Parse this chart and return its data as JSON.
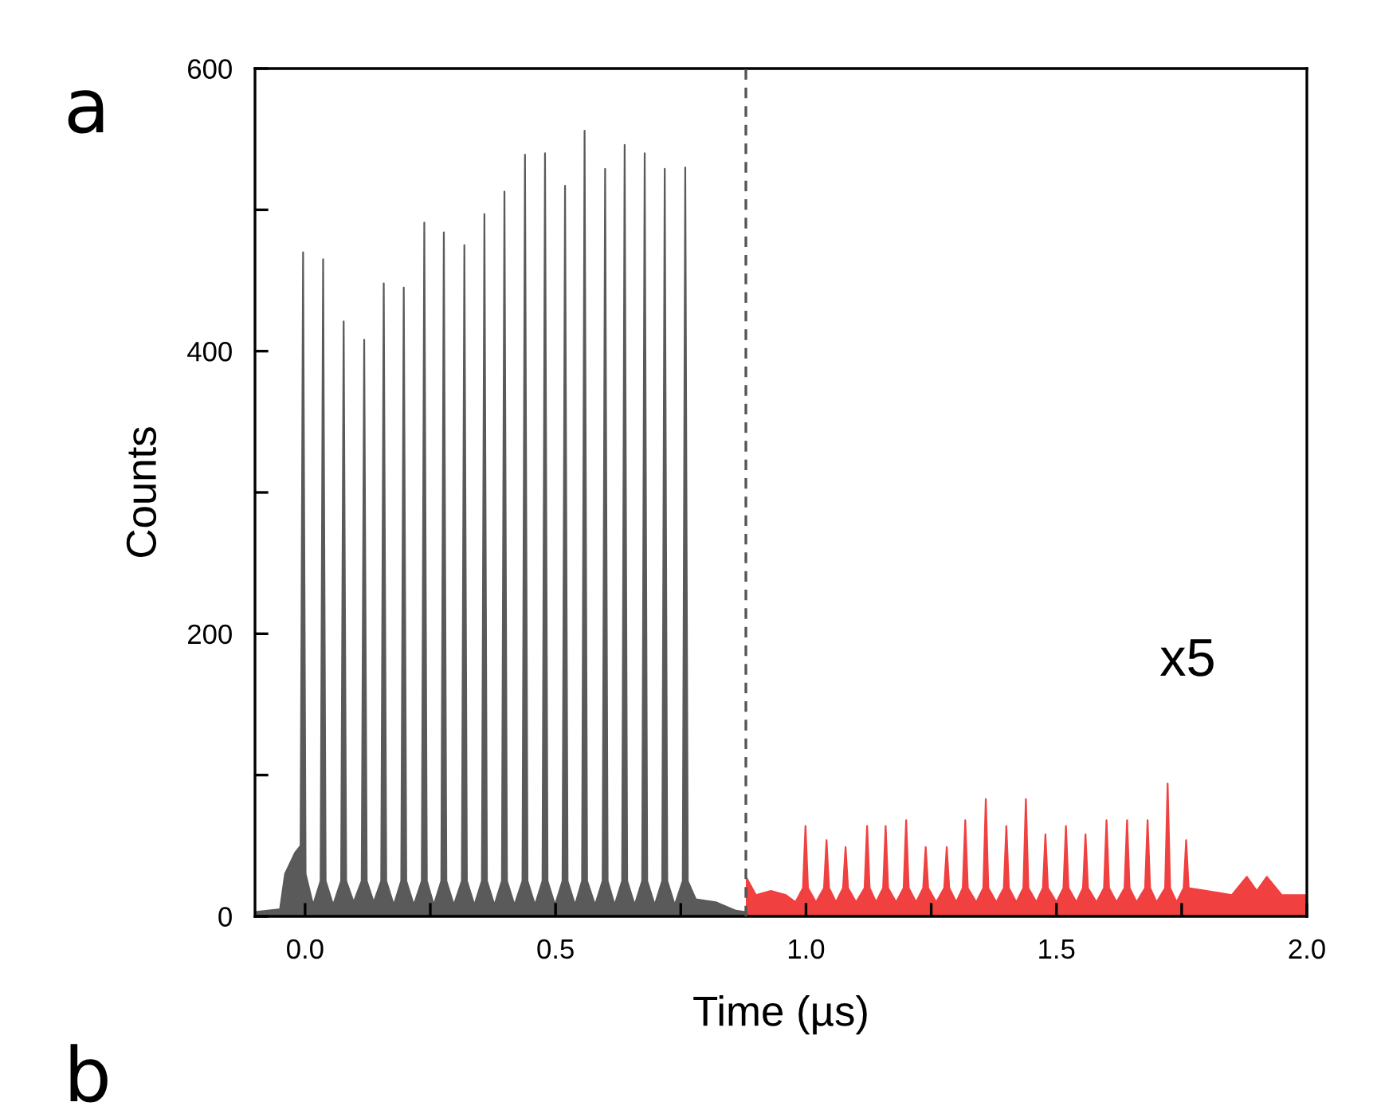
{
  "chart_data": {
    "type": "area",
    "xlabel": "Time (µs)",
    "ylabel": "Counts",
    "annotations": [
      "a",
      "b",
      "x5"
    ],
    "xlim": [
      -0.1,
      2.0
    ],
    "xticks": [
      {
        "value": 0,
        "label": "0.0"
      },
      0.5,
      {
        "value": 1,
        "label": "1.0"
      },
      1.5,
      {
        "value": 2,
        "label": "2.0"
      },
      {
        "value": 0.25,
        "label": null
      },
      {
        "value": 0.75,
        "label": null
      },
      {
        "value": 1.25,
        "label": null
      },
      {
        "value": 1.75,
        "label": null
      }
    ],
    "ylim": [
      0,
      600
    ],
    "yticks": [
      0,
      200,
      400,
      600,
      {
        "value": 100,
        "label": null
      },
      {
        "value": 300,
        "label": null
      },
      {
        "value": 500,
        "label": null
      }
    ],
    "grid": false,
    "legend": false,
    "ref_lines": [
      {
        "axis": "x",
        "value": 0.88,
        "color": "#555555",
        "line_style": "dashed"
      }
    ],
    "series": [
      {
        "color": "#5a5a5a",
        "x": [
          -0.1,
          -0.05,
          -0.04,
          -0.02,
          -0.009,
          -0.004,
          0.001,
          0.016,
          0.031,
          0.036,
          0.041,
          0.056,
          0.072,
          0.077,
          0.082,
          0.097,
          0.113,
          0.118,
          0.123,
          0.137,
          0.152,
          0.157,
          0.162,
          0.177,
          0.192,
          0.197,
          0.202,
          0.217,
          0.233,
          0.238,
          0.243,
          0.257,
          0.272,
          0.277,
          0.282,
          0.297,
          0.313,
          0.318,
          0.323,
          0.338,
          0.353,
          0.358,
          0.363,
          0.378,
          0.393,
          0.398,
          0.403,
          0.418,
          0.434,
          0.439,
          0.444,
          0.459,
          0.474,
          0.479,
          0.484,
          0.499,
          0.514,
          0.519,
          0.524,
          0.539,
          0.553,
          0.558,
          0.563,
          0.579,
          0.594,
          0.599,
          0.604,
          0.618,
          0.633,
          0.638,
          0.643,
          0.658,
          0.673,
          0.678,
          0.683,
          0.698,
          0.713,
          0.718,
          0.723,
          0.738,
          0.754,
          0.759,
          0.764,
          0.78,
          0.82,
          0.86,
          0.88
        ],
        "values": [
          3,
          5,
          30,
          45,
          50,
          470,
          30,
          8,
          25,
          465,
          25,
          8,
          25,
          421,
          25,
          10,
          25,
          408,
          25,
          10,
          25,
          448,
          25,
          8,
          25,
          445,
          25,
          8,
          25,
          491,
          25,
          8,
          25,
          484,
          25,
          8,
          25,
          475,
          25,
          8,
          25,
          497,
          25,
          8,
          25,
          513,
          25,
          8,
          25,
          539,
          25,
          8,
          25,
          540,
          25,
          8,
          25,
          517,
          25,
          8,
          25,
          556,
          25,
          8,
          25,
          529,
          25,
          8,
          25,
          546,
          25,
          8,
          25,
          540,
          25,
          8,
          25,
          529,
          25,
          8,
          25,
          530,
          25,
          12,
          10,
          4,
          3
        ]
      },
      {
        "color": "#f04040",
        "x": [
          0.88,
          0.9,
          0.93,
          0.96,
          0.979,
          0.994,
          0.999,
          1.004,
          1.02,
          1.036,
          1.041,
          1.046,
          1.06,
          1.074,
          1.079,
          1.084,
          1.1,
          1.117,
          1.122,
          1.127,
          1.14,
          1.154,
          1.159,
          1.164,
          1.18,
          1.195,
          1.2,
          1.205,
          1.22,
          1.234,
          1.239,
          1.244,
          1.26,
          1.276,
          1.281,
          1.286,
          1.3,
          1.313,
          1.318,
          1.323,
          1.34,
          1.354,
          1.359,
          1.364,
          1.38,
          1.395,
          1.4,
          1.405,
          1.42,
          1.434,
          1.439,
          1.444,
          1.46,
          1.473,
          1.478,
          1.483,
          1.5,
          1.514,
          1.519,
          1.524,
          1.54,
          1.553,
          1.558,
          1.563,
          1.58,
          1.595,
          1.6,
          1.605,
          1.62,
          1.636,
          1.641,
          1.646,
          1.66,
          1.677,
          1.682,
          1.687,
          1.7,
          1.717,
          1.722,
          1.727,
          1.74,
          1.754,
          1.759,
          1.764,
          1.8,
          1.85,
          1.88,
          1.9,
          1.92,
          1.95,
          2.0
        ],
        "values": [
          28,
          15,
          18,
          15,
          10,
          20,
          64,
          20,
          10,
          20,
          54,
          20,
          10,
          20,
          49,
          20,
          10,
          20,
          64,
          20,
          10,
          20,
          64,
          20,
          10,
          20,
          68,
          20,
          10,
          20,
          49,
          20,
          10,
          20,
          49,
          20,
          10,
          20,
          68,
          20,
          10,
          20,
          83,
          20,
          10,
          20,
          64,
          20,
          10,
          20,
          83,
          20,
          10,
          20,
          58,
          20,
          10,
          20,
          64,
          20,
          10,
          20,
          58,
          20,
          10,
          20,
          68,
          20,
          10,
          20,
          68,
          20,
          10,
          20,
          68,
          20,
          10,
          20,
          94,
          20,
          10,
          20,
          54,
          20,
          18,
          15,
          28,
          18,
          28,
          15,
          15
        ]
      }
    ]
  }
}
